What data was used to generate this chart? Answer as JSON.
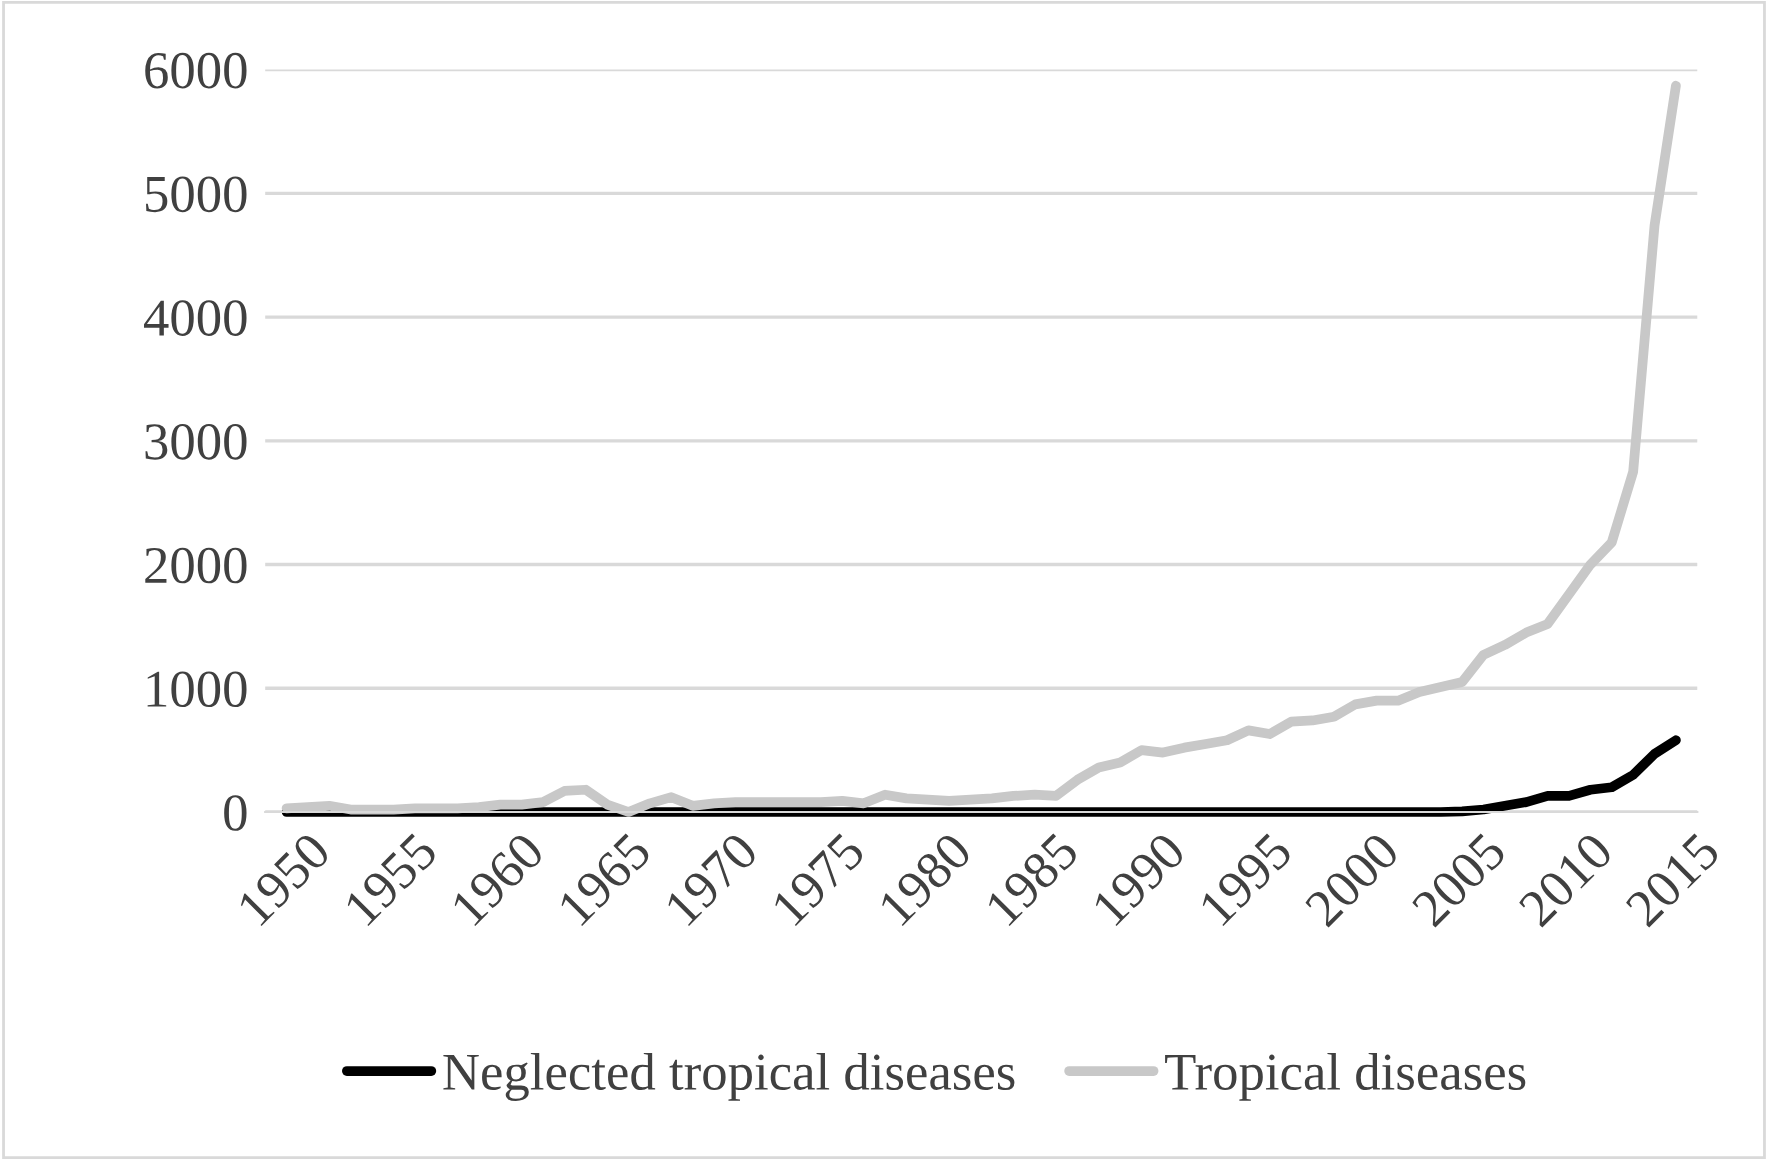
{
  "chart_data": {
    "type": "line",
    "x": [
      1950,
      1951,
      1952,
      1953,
      1954,
      1955,
      1956,
      1957,
      1958,
      1959,
      1960,
      1961,
      1962,
      1963,
      1964,
      1965,
      1966,
      1967,
      1968,
      1969,
      1970,
      1971,
      1972,
      1973,
      1974,
      1975,
      1976,
      1977,
      1978,
      1979,
      1980,
      1981,
      1982,
      1983,
      1984,
      1985,
      1986,
      1987,
      1988,
      1989,
      1990,
      1991,
      1992,
      1993,
      1994,
      1995,
      1996,
      1997,
      1998,
      1999,
      2000,
      2001,
      2002,
      2003,
      2004,
      2005,
      2006,
      2007,
      2008,
      2009,
      2010,
      2011,
      2012,
      2013,
      2014,
      2015
    ],
    "series": [
      {
        "name": "Neglected tropical diseases",
        "color": "#000000",
        "values": [
          0,
          0,
          0,
          0,
          0,
          0,
          0,
          0,
          0,
          0,
          0,
          0,
          0,
          0,
          0,
          0,
          0,
          0,
          0,
          0,
          0,
          0,
          0,
          0,
          0,
          0,
          0,
          0,
          0,
          0,
          0,
          0,
          0,
          0,
          0,
          0,
          0,
          0,
          0,
          0,
          0,
          0,
          0,
          0,
          0,
          0,
          0,
          0,
          0,
          0,
          0,
          0,
          0,
          0,
          0,
          5,
          20,
          50,
          80,
          130,
          130,
          180,
          200,
          300,
          470,
          580
        ]
      },
      {
        "name": "Tropical diseases",
        "color": "#c8c8c8",
        "values": [
          30,
          40,
          50,
          20,
          20,
          20,
          30,
          30,
          30,
          40,
          60,
          60,
          80,
          170,
          180,
          60,
          0,
          70,
          120,
          50,
          70,
          80,
          80,
          80,
          80,
          80,
          90,
          70,
          140,
          110,
          100,
          90,
          100,
          110,
          130,
          140,
          130,
          260,
          360,
          400,
          500,
          480,
          520,
          550,
          580,
          660,
          630,
          730,
          740,
          770,
          870,
          900,
          900,
          970,
          1010,
          1050,
          1270,
          1350,
          1450,
          1520,
          1760,
          2000,
          2180,
          2750,
          4740,
          5870
        ]
      }
    ],
    "xlim": [
      1949,
      2016
    ],
    "xticks": [
      1950,
      1955,
      1960,
      1965,
      1970,
      1975,
      1980,
      1985,
      1990,
      1995,
      2000,
      2005,
      2010,
      2015
    ],
    "ylim": [
      0,
      6000
    ],
    "yticks": [
      0,
      1000,
      2000,
      3000,
      4000,
      5000,
      6000
    ],
    "grid": "y",
    "legend": "bottom",
    "marker": "none",
    "line_style": "solid"
  }
}
